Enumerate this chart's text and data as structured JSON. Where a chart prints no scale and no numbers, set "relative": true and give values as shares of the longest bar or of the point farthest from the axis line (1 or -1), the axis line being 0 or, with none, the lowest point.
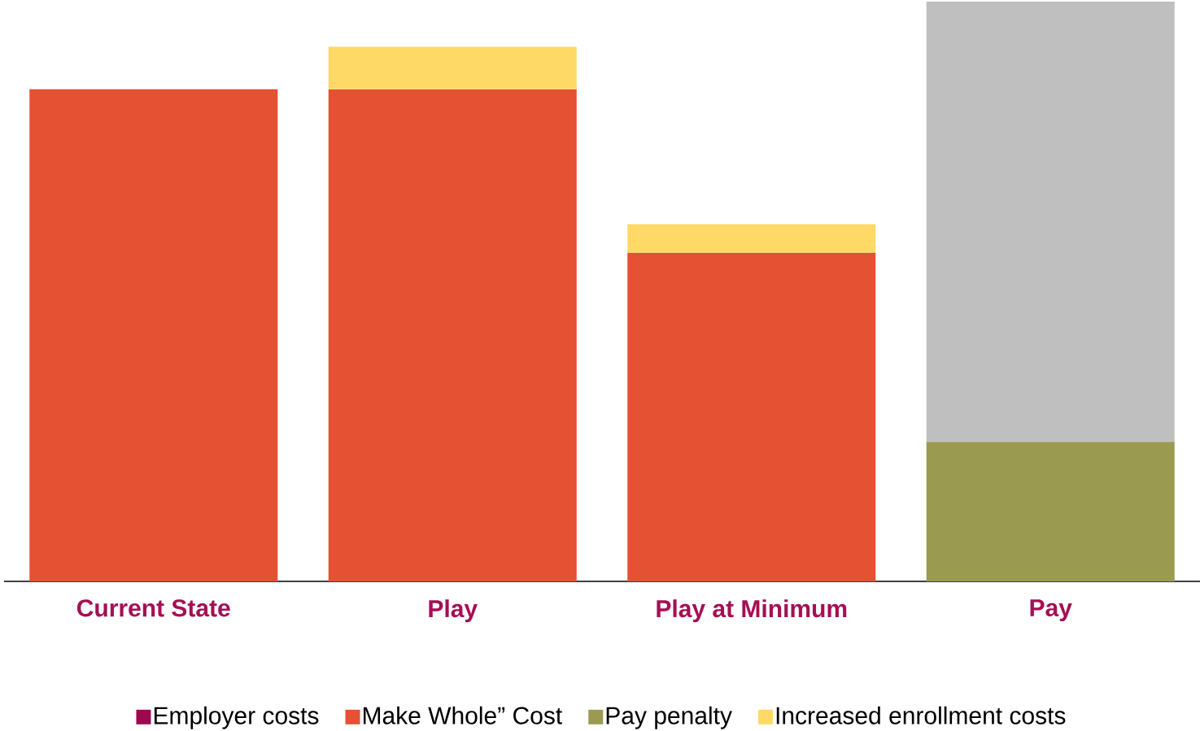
{
  "chart_data": {
    "type": "bar",
    "stacked": true,
    "relative": true,
    "legend": "bottom",
    "categories": [
      "Current State",
      "Play",
      "Play at Minimum",
      "Pay"
    ],
    "series": [
      {
        "name": "Employer costs",
        "color": "#9b0a4e",
        "values": [
          null,
          null,
          null,
          null
        ]
      },
      {
        "name": "Make Whole” Cost",
        "color": "#e45133",
        "values": [
          0.849,
          0.849,
          0.567,
          null
        ]
      },
      {
        "name": "Pay penalty",
        "color": "#9a9a50",
        "values": [
          null,
          null,
          null,
          0.241
        ]
      },
      {
        "color": "#bfbfbf",
        "values": [
          null,
          null,
          null,
          0.759
        ]
      },
      {
        "name": "Increased enrollment costs",
        "color": "#ffd966",
        "values": [
          null,
          0.073,
          0.049,
          null
        ]
      }
    ]
  }
}
